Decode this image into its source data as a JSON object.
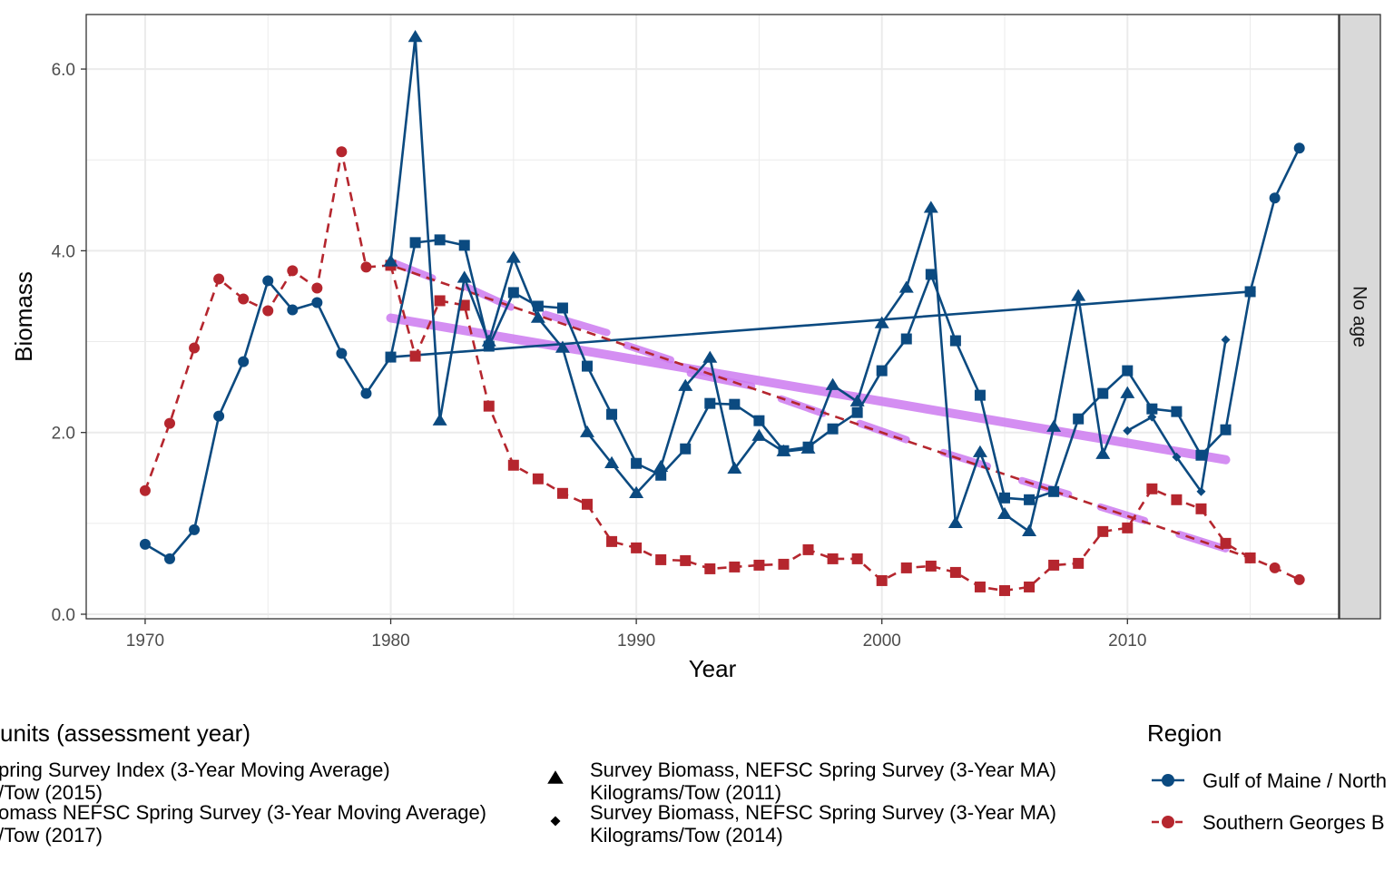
{
  "chart_data": {
    "type": "line",
    "xlabel": "Year",
    "ylabel": "Biomass",
    "xlim": [
      1967.8,
      1968.8
    ],
    "xrange": [
      1967.6,
      2018.6
    ],
    "yrange": [
      -0.05,
      6.6
    ],
    "x_ticks": [
      1970,
      1980,
      1990,
      2000,
      2010
    ],
    "x_tick_labels": [
      "1970",
      "1980",
      "1990",
      "2000",
      "2010"
    ],
    "y_ticks": [
      0,
      2,
      4,
      6
    ],
    "y_tick_labels": [
      "0.0",
      "2.0",
      "4.0",
      "6.0"
    ],
    "facet_label": "No age",
    "grid": true,
    "colors": {
      "gulf": "#0b4a80",
      "southern": "#b5262e",
      "trend": "#cc7af0",
      "strip_bg": "#d9d9d9",
      "grid": "#ebebeb"
    },
    "legend_units": {
      "title": "units (assessment year)",
      "entries": [
        {
          "shape": "circle",
          "line1": "pring Survey Index (3-Year Moving Average)",
          "line2": "/Tow (2015)"
        },
        {
          "shape": "square",
          "line1": "omass NEFSC Spring Survey (3-Year Moving Average)",
          "line2": "/Tow (2017)"
        },
        {
          "shape": "triangle",
          "line1": "Survey Biomass, NEFSC Spring Survey (3-Year MA)",
          "line2": "Kilograms/Tow (2011)"
        },
        {
          "shape": "diamond",
          "line1": "Survey Biomass, NEFSC Spring Survey (3-Year MA)",
          "line2": "Kilograms/Tow (2014)"
        }
      ]
    },
    "legend_region": {
      "title": "Region",
      "entries": [
        {
          "label": "Gulf of Maine / North",
          "color": "#0b4a80",
          "dash": "solid"
        },
        {
          "label": "Southern Georges B",
          "color": "#b5262e",
          "dash": "dashed"
        }
      ]
    },
    "series": [
      {
        "region": "Gulf of Maine / North",
        "shape": "circle",
        "color": "#0b4a80",
        "dash": "solid",
        "points": [
          [
            1970,
            0.77
          ],
          [
            1971,
            0.61
          ],
          [
            1972,
            0.93
          ],
          [
            1973,
            2.18
          ],
          [
            1974,
            2.78
          ],
          [
            1975,
            3.67
          ],
          [
            1976,
            3.35
          ],
          [
            1977,
            3.43
          ],
          [
            1978,
            2.87
          ],
          [
            1979,
            2.43
          ],
          [
            1980,
            2.83
          ],
          [
            2015,
            3.55
          ],
          [
            2016,
            4.58
          ],
          [
            2017,
            5.13
          ]
        ]
      },
      {
        "region": "Southern Georges B",
        "shape": "circle",
        "color": "#b5262e",
        "dash": "dashed",
        "points": [
          [
            1970,
            1.36
          ],
          [
            1971,
            2.1
          ],
          [
            1972,
            2.93
          ],
          [
            1973,
            3.69
          ],
          [
            1974,
            3.47
          ],
          [
            1975,
            3.34
          ],
          [
            1976,
            3.78
          ],
          [
            1977,
            3.59
          ],
          [
            1978,
            5.09
          ],
          [
            1979,
            3.82
          ],
          [
            1980,
            3.84
          ],
          [
            2015,
            0.62
          ],
          [
            2016,
            0.51
          ],
          [
            2017,
            0.38
          ]
        ]
      },
      {
        "region": "Gulf of Maine / North",
        "shape": "square",
        "color": "#0b4a80",
        "dash": "solid",
        "points": [
          [
            1980,
            2.83
          ],
          [
            1981,
            4.09
          ],
          [
            1982,
            4.12
          ],
          [
            1983,
            4.06
          ],
          [
            1984,
            2.95
          ],
          [
            1985,
            3.54
          ],
          [
            1986,
            3.39
          ],
          [
            1987,
            3.37
          ],
          [
            1988,
            2.73
          ],
          [
            1989,
            2.2
          ],
          [
            1990,
            1.66
          ],
          [
            1991,
            1.53
          ],
          [
            1992,
            1.82
          ],
          [
            1993,
            2.32
          ],
          [
            1994,
            2.31
          ],
          [
            1995,
            2.13
          ],
          [
            1996,
            1.8
          ],
          [
            1997,
            1.84
          ],
          [
            1998,
            2.04
          ],
          [
            1999,
            2.22
          ],
          [
            2000,
            2.68
          ],
          [
            2001,
            3.03
          ],
          [
            2002,
            3.74
          ],
          [
            2003,
            3.01
          ],
          [
            2004,
            2.41
          ],
          [
            2005,
            1.28
          ],
          [
            2006,
            1.26
          ],
          [
            2007,
            1.35
          ],
          [
            2008,
            2.15
          ],
          [
            2009,
            2.43
          ],
          [
            2010,
            2.68
          ],
          [
            2011,
            2.26
          ],
          [
            2012,
            2.23
          ],
          [
            2013,
            1.75
          ],
          [
            2014,
            2.03
          ],
          [
            2015,
            3.55
          ]
        ]
      },
      {
        "region": "Southern Georges B",
        "shape": "square",
        "color": "#b5262e",
        "dash": "dashed",
        "points": [
          [
            1980,
            3.84
          ],
          [
            1981,
            2.84
          ],
          [
            1982,
            3.45
          ],
          [
            1983,
            3.4
          ],
          [
            1984,
            2.29
          ],
          [
            1985,
            1.64
          ],
          [
            1986,
            1.49
          ],
          [
            1987,
            1.33
          ],
          [
            1988,
            1.21
          ],
          [
            1989,
            0.8
          ],
          [
            1990,
            0.73
          ],
          [
            1991,
            0.6
          ],
          [
            1992,
            0.59
          ],
          [
            1993,
            0.5
          ],
          [
            1994,
            0.52
          ],
          [
            1995,
            0.54
          ],
          [
            1996,
            0.55
          ],
          [
            1997,
            0.71
          ],
          [
            1998,
            0.61
          ],
          [
            1999,
            0.61
          ],
          [
            2000,
            0.37
          ],
          [
            2001,
            0.51
          ],
          [
            2002,
            0.53
          ],
          [
            2003,
            0.46
          ],
          [
            2004,
            0.3
          ],
          [
            2005,
            0.26
          ],
          [
            2006,
            0.3
          ],
          [
            2007,
            0.54
          ],
          [
            2008,
            0.56
          ],
          [
            2009,
            0.91
          ],
          [
            2010,
            0.95
          ],
          [
            2011,
            1.38
          ],
          [
            2012,
            1.26
          ],
          [
            2013,
            1.16
          ],
          [
            2014,
            0.78
          ],
          [
            2015,
            0.62
          ]
        ]
      },
      {
        "region": "Gulf of Maine / North",
        "shape": "triangle",
        "color": "#0b4a80",
        "dash": "solid",
        "points": [
          [
            1980,
            3.88
          ],
          [
            1981,
            6.35
          ],
          [
            1982,
            2.13
          ],
          [
            1983,
            3.7
          ],
          [
            1984,
            3.0
          ],
          [
            1985,
            3.92
          ],
          [
            1986,
            3.26
          ],
          [
            1987,
            2.93
          ],
          [
            1988,
            2.0
          ],
          [
            1989,
            1.66
          ],
          [
            1990,
            1.33
          ],
          [
            1991,
            1.62
          ],
          [
            1992,
            2.51
          ],
          [
            1993,
            2.82
          ],
          [
            1994,
            1.6
          ],
          [
            1995,
            1.96
          ],
          [
            1996,
            1.79
          ],
          [
            1997,
            1.82
          ],
          [
            1998,
            2.52
          ],
          [
            1999,
            2.34
          ],
          [
            2000,
            3.2
          ],
          [
            2001,
            3.59
          ],
          [
            2002,
            4.47
          ],
          [
            2003,
            1.0
          ],
          [
            2004,
            1.78
          ],
          [
            2005,
            1.1
          ],
          [
            2006,
            0.91
          ],
          [
            2007,
            2.06
          ],
          [
            2008,
            3.5
          ],
          [
            2009,
            1.76
          ],
          [
            2010,
            2.43
          ]
        ]
      },
      {
        "region": "Gulf of Maine / North",
        "shape": "diamond",
        "color": "#0b4a80",
        "dash": "solid",
        "points": [
          [
            2010,
            2.02
          ],
          [
            2011,
            2.17
          ],
          [
            2012,
            1.73
          ],
          [
            2013,
            1.35
          ],
          [
            2014,
            3.02
          ]
        ]
      }
    ],
    "trend_lines": [
      {
        "x": [
          1980,
          2014
        ],
        "y": [
          3.26,
          1.7
        ],
        "width": "thick"
      },
      {
        "x": [
          1980,
          1981.7
        ],
        "y": [
          3.88,
          3.7
        ],
        "width": "thin"
      },
      {
        "x": [
          1983.1,
          1984.9
        ],
        "y": [
          3.6,
          3.38
        ],
        "width": "thin"
      },
      {
        "x": [
          1986.3,
          1988.8
        ],
        "y": [
          3.3,
          3.1
        ],
        "width": "thin"
      },
      {
        "x": [
          1989.6,
          1991.4
        ],
        "y": [
          2.96,
          2.8
        ],
        "width": "thin"
      },
      {
        "x": [
          1992.2,
          1994.7
        ],
        "y": [
          2.65,
          2.51
        ],
        "width": "thin"
      },
      {
        "x": [
          1995.9,
          1997.6
        ],
        "y": [
          2.37,
          2.21
        ],
        "width": "thin"
      },
      {
        "x": [
          1999.1,
          2001.0
        ],
        "y": [
          2.1,
          1.92
        ],
        "width": "thin"
      },
      {
        "x": [
          2002.5,
          2004.3
        ],
        "y": [
          1.78,
          1.63
        ],
        "width": "thin"
      },
      {
        "x": [
          2005.7,
          2007.6
        ],
        "y": [
          1.47,
          1.32
        ],
        "width": "thin"
      },
      {
        "x": [
          2008.9,
          2010.7
        ],
        "y": [
          1.18,
          1.03
        ],
        "width": "thin"
      },
      {
        "x": [
          2012.1,
          2014.0
        ],
        "y": [
          0.88,
          0.72
        ],
        "width": "thin"
      }
    ]
  }
}
